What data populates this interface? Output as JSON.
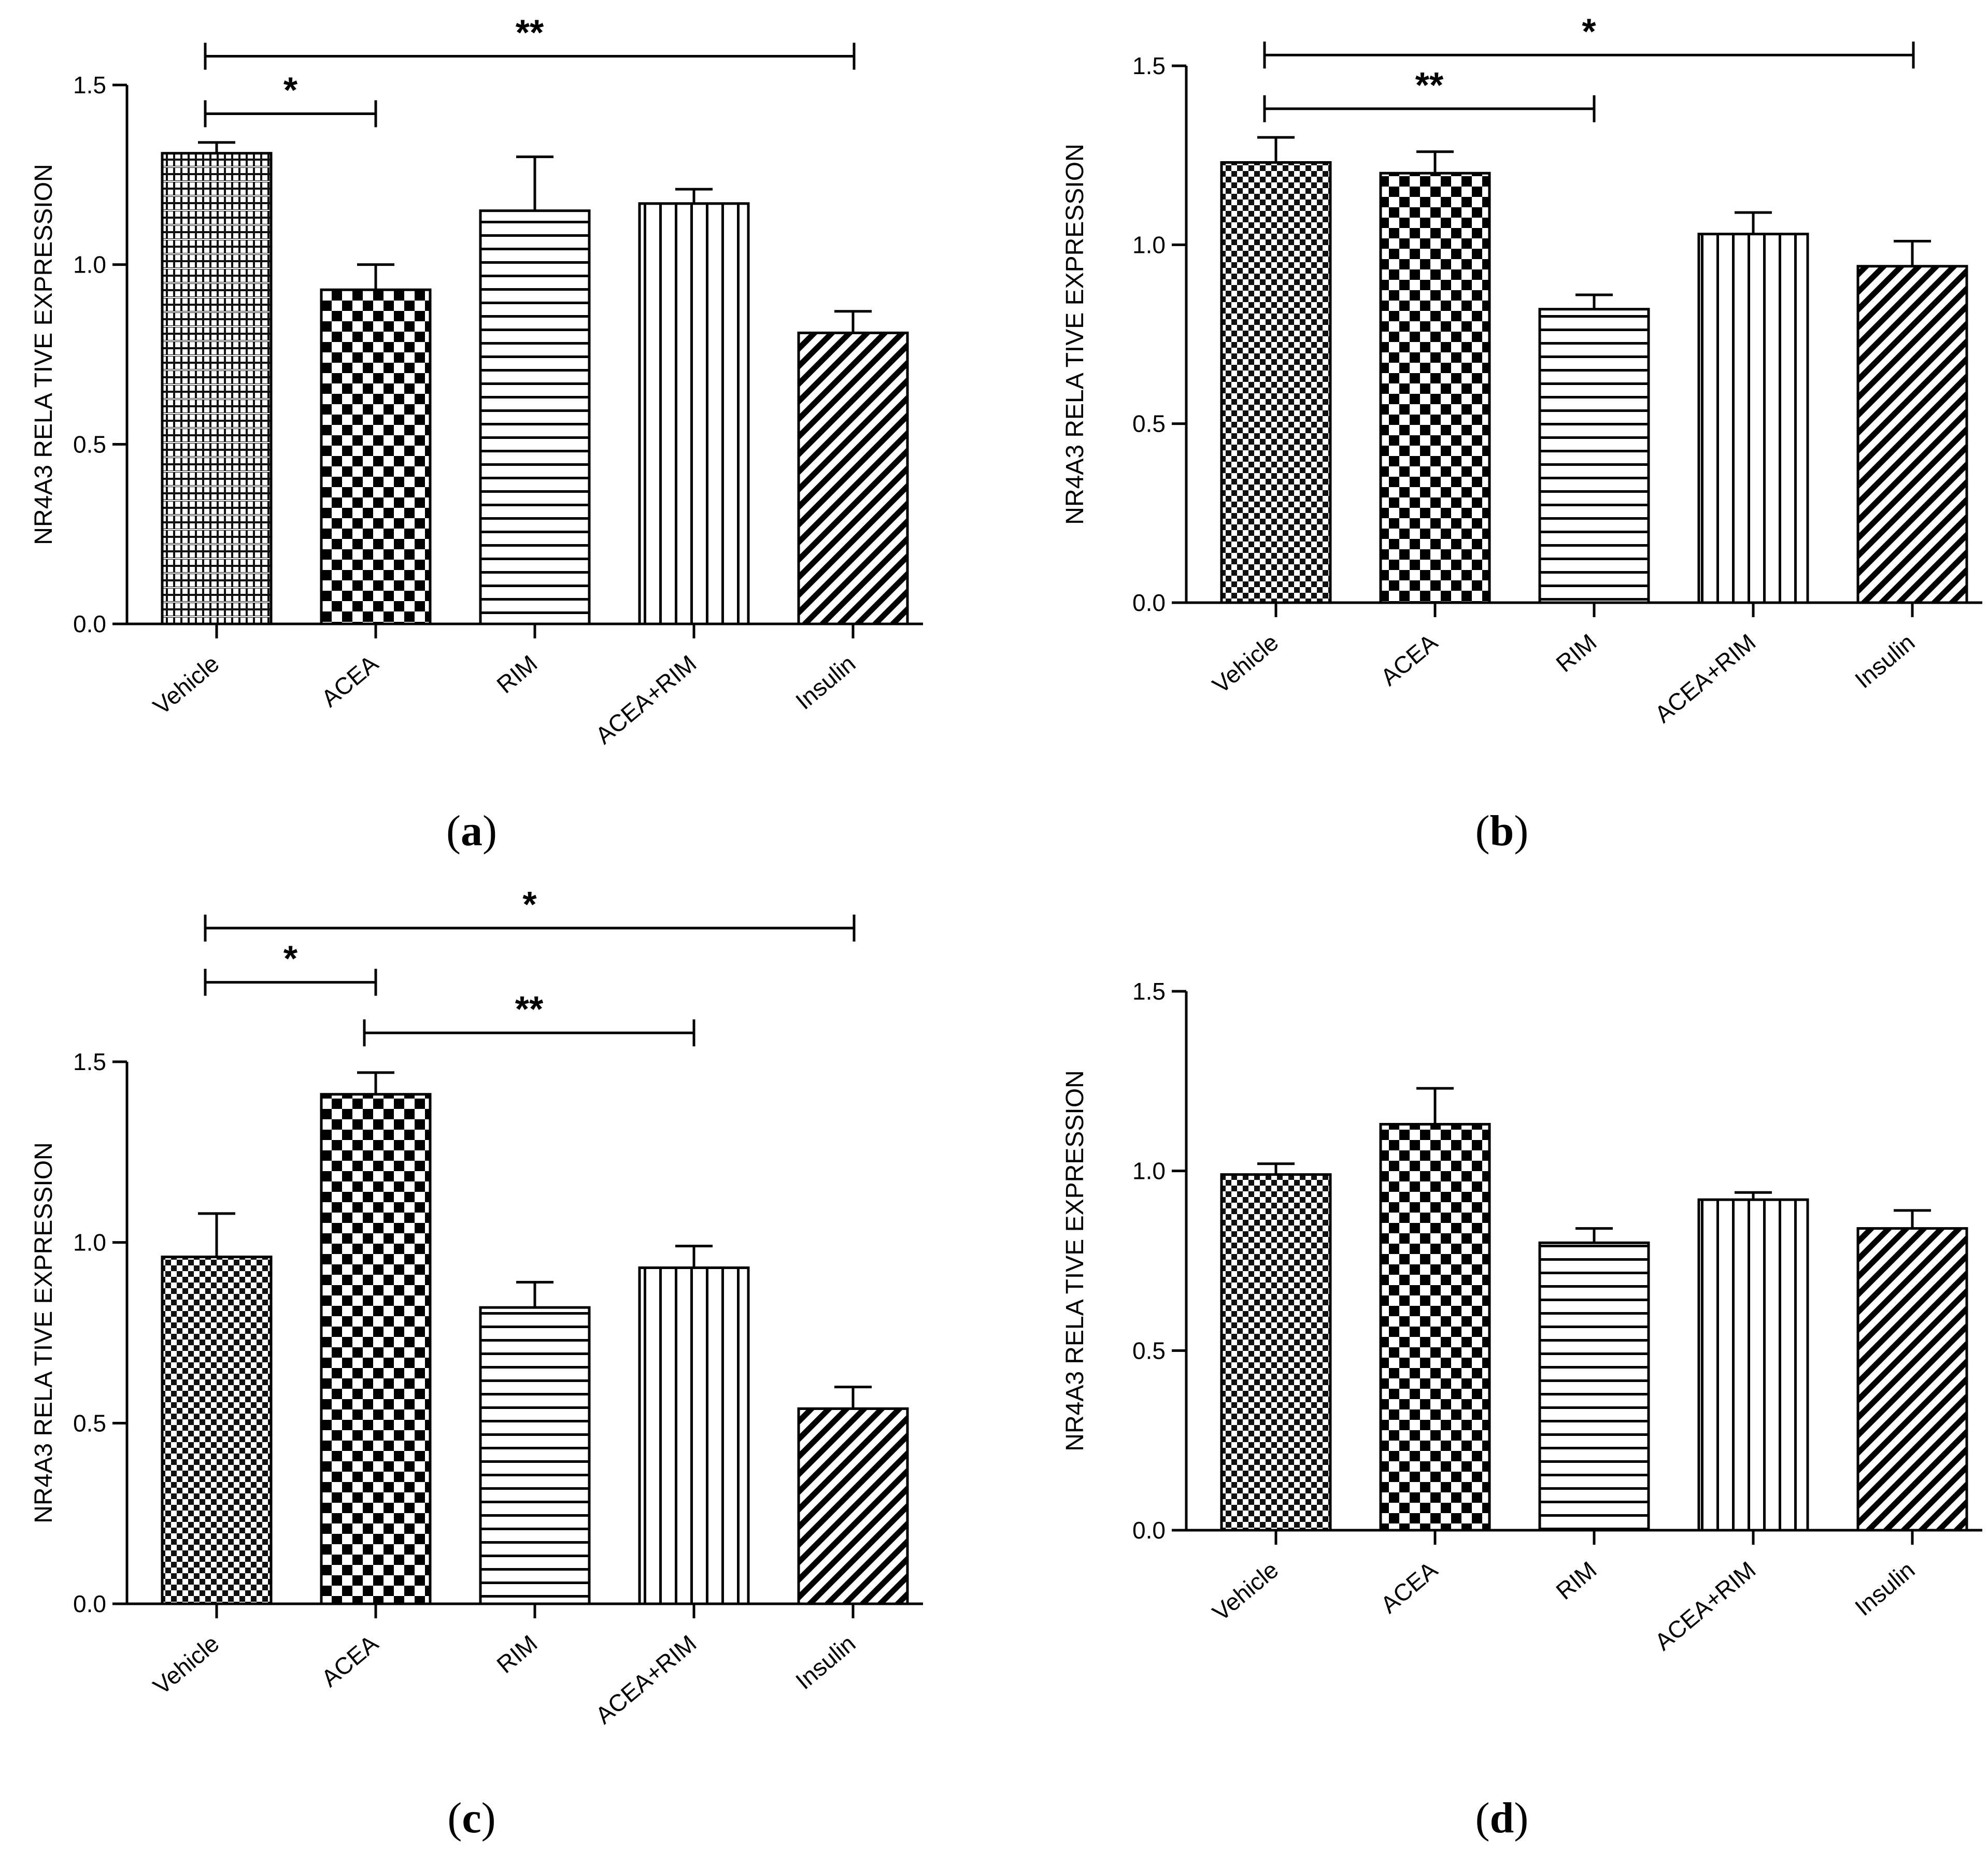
{
  "figure": {
    "panel_labels": [
      "a",
      "b",
      "c",
      "d"
    ]
  },
  "chart_data": [
    {
      "panel": "a",
      "type": "bar",
      "ylabel": "NR4A3 RELA TIVE EXPRESSION",
      "ylim": [
        0,
        1.5
      ],
      "yticks": [
        "0.0",
        "0.5",
        "1.0",
        "1.5"
      ],
      "categories": [
        "Vehicle",
        "ACEA",
        "RIM",
        "ACEA+RIM",
        "Insulin"
      ],
      "values": [
        1.31,
        0.93,
        1.15,
        1.17,
        0.81
      ],
      "errors": [
        0.03,
        0.07,
        0.15,
        0.04,
        0.06
      ],
      "patterns": [
        "grid",
        "checker",
        "hlines",
        "vlines",
        "diag"
      ],
      "significance": [
        {
          "from": 0,
          "to": 4,
          "label": "**",
          "y": 1.58
        },
        {
          "from": 0,
          "to": 1,
          "label": "*",
          "y": 1.42
        }
      ]
    },
    {
      "panel": "b",
      "type": "bar",
      "ylabel": "NR4A3 RELA TIVE EXPRESSION",
      "ylim": [
        0,
        1.5
      ],
      "yticks": [
        "0.0",
        "0.5",
        "1.0",
        "1.5"
      ],
      "categories": [
        "Vehicle",
        "ACEA",
        "RIM",
        "ACEA+RIM",
        "Insulin"
      ],
      "values": [
        1.23,
        1.2,
        0.82,
        1.03,
        0.94
      ],
      "errors": [
        0.07,
        0.06,
        0.04,
        0.06,
        0.07
      ],
      "patterns": [
        "finecheck",
        "checker",
        "hlines",
        "vlines",
        "diag"
      ],
      "significance": [
        {
          "from": 0,
          "to": 4,
          "label": "*",
          "y": 1.53
        },
        {
          "from": 0,
          "to": 2,
          "label": "**",
          "y": 1.38
        }
      ]
    },
    {
      "panel": "c",
      "type": "bar",
      "ylabel": "NR4A3 RELA TIVE EXPRESSION",
      "ylim": [
        0,
        1.5
      ],
      "yticks": [
        "0.0",
        "0.5",
        "1.0",
        "1.5"
      ],
      "categories": [
        "Vehicle",
        "ACEA",
        "RIM",
        "ACEA+RIM",
        "Insulin"
      ],
      "values": [
        0.96,
        1.41,
        0.82,
        0.93,
        0.54
      ],
      "errors": [
        0.12,
        0.06,
        0.07,
        0.06,
        0.06
      ],
      "patterns": [
        "finecheck",
        "checker",
        "hlines",
        "vlines",
        "diag"
      ],
      "significance": [
        {
          "from": 0,
          "to": 4,
          "label": "*",
          "y": 1.87
        },
        {
          "from": 0,
          "to": 1,
          "label": "*",
          "y": 1.72
        },
        {
          "from": 1,
          "to": 3,
          "label": "**",
          "y": 1.58
        }
      ]
    },
    {
      "panel": "d",
      "type": "bar",
      "ylabel": "NR4A3 RELA TIVE EXPRESSION",
      "ylim": [
        0,
        1.5
      ],
      "yticks": [
        "0.0",
        "0.5",
        "1.0",
        "1.5"
      ],
      "categories": [
        "Vehicle",
        "ACEA",
        "RIM",
        "ACEA+RIM",
        "Insulin"
      ],
      "values": [
        0.99,
        1.13,
        0.8,
        0.92,
        0.84
      ],
      "errors": [
        0.03,
        0.1,
        0.04,
        0.02,
        0.05
      ],
      "patterns": [
        "finecheck",
        "checker",
        "hlines",
        "vlines",
        "diag"
      ],
      "significance": []
    }
  ]
}
